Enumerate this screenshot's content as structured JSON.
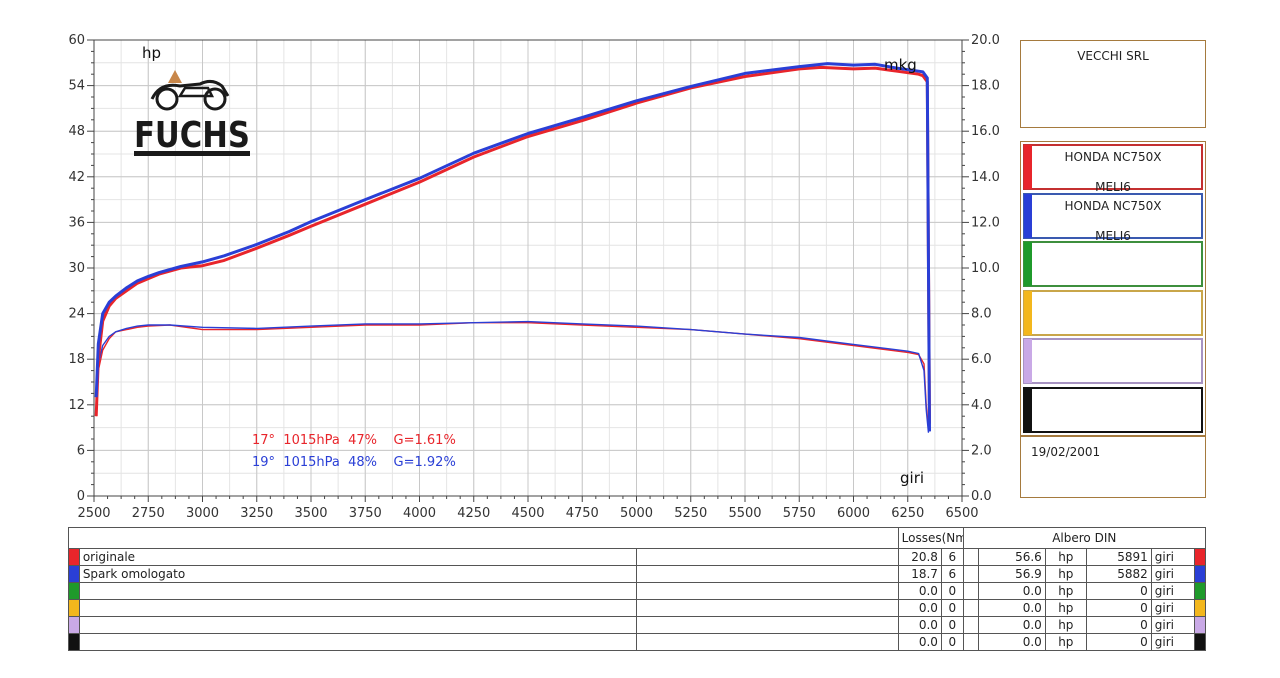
{
  "chart_data": {
    "type": "line",
    "x_axis": {
      "ticks": [
        2500,
        2750,
        3000,
        3250,
        3500,
        3750,
        4000,
        4250,
        4500,
        4750,
        5000,
        5250,
        5500,
        5750,
        6000,
        6250,
        6500
      ],
      "range": [
        2500,
        6500
      ],
      "label": "giri"
    },
    "y_left": {
      "ticks": [
        0,
        6,
        12,
        18,
        24,
        30,
        36,
        42,
        48,
        54,
        60
      ],
      "range": [
        0,
        60
      ],
      "label": "hp"
    },
    "y_right": {
      "ticks": [
        "0.0",
        "2.0",
        "4.0",
        "6.0",
        "8.0",
        "10.0",
        "12.0",
        "14.0",
        "16.0",
        "18.0",
        "20.0"
      ],
      "range": [
        0,
        20
      ],
      "label": "mkg"
    },
    "grid": true,
    "series": [
      {
        "name": "originale",
        "color": "#e8252b",
        "power_hp": {
          "x": [
            2510,
            2520,
            2540,
            2570,
            2600,
            2650,
            2700,
            2750,
            2800,
            2900,
            3000,
            3100,
            3250,
            3400,
            3500,
            3750,
            4000,
            4250,
            4500,
            4750,
            5000,
            5250,
            5500,
            5750,
            5850,
            6000,
            6100,
            6200,
            6300,
            6320,
            6340,
            6350
          ],
          "y": [
            10.5,
            18,
            23,
            25,
            26,
            27,
            28,
            28.6,
            29.2,
            30,
            30.3,
            31,
            32.6,
            34.3,
            35.5,
            38.4,
            41.3,
            44.6,
            47.3,
            49.4,
            51.7,
            53.7,
            55.2,
            56.2,
            56.4,
            56.2,
            56.3,
            55.9,
            55.5,
            55.3,
            54.5,
            9.5
          ]
        },
        "torque_mkg": {
          "x": [
            2510,
            2520,
            2540,
            2570,
            2600,
            2650,
            2700,
            2750,
            2850,
            3000,
            3250,
            3500,
            3750,
            4000,
            4250,
            4500,
            4750,
            5000,
            5250,
            5500,
            5750,
            6000,
            6250,
            6300,
            6325,
            6335,
            6345,
            6350
          ],
          "y": [
            3.5,
            5.5,
            6.4,
            6.9,
            7.2,
            7.3,
            7.4,
            7.45,
            7.5,
            7.3,
            7.3,
            7.4,
            7.5,
            7.5,
            7.6,
            7.6,
            7.5,
            7.4,
            7.3,
            7.1,
            6.9,
            6.6,
            6.3,
            6.2,
            5.8,
            4,
            3,
            3.3
          ]
        }
      },
      {
        "name": "Spark omologato",
        "color": "#2a3fd6",
        "power_hp": {
          "x": [
            2510,
            2520,
            2540,
            2570,
            2600,
            2650,
            2700,
            2750,
            2800,
            2900,
            3000,
            3100,
            3250,
            3400,
            3500,
            3750,
            4000,
            4250,
            4500,
            4750,
            5000,
            5250,
            5500,
            5750,
            5880,
            6000,
            6100,
            6200,
            6300,
            6320,
            6340,
            6350
          ],
          "y": [
            13,
            20,
            24,
            25.5,
            26.3,
            27.4,
            28.3,
            28.9,
            29.4,
            30.2,
            30.8,
            31.6,
            33.1,
            34.8,
            36.1,
            39,
            41.8,
            45.1,
            47.7,
            49.8,
            52,
            53.9,
            55.6,
            56.5,
            56.9,
            56.7,
            56.8,
            56.3,
            55.9,
            55.8,
            55,
            8.5
          ]
        },
        "torque_mkg": {
          "x": [
            2510,
            2520,
            2540,
            2570,
            2600,
            2650,
            2700,
            2750,
            2850,
            3000,
            3250,
            3500,
            3750,
            4000,
            4250,
            4500,
            4750,
            5000,
            5250,
            5500,
            5750,
            6000,
            6250,
            6300,
            6325,
            6335,
            6345,
            6350
          ],
          "y": [
            4,
            5.8,
            6.6,
            7,
            7.2,
            7.35,
            7.45,
            7.5,
            7.5,
            7.4,
            7.35,
            7.45,
            7.55,
            7.55,
            7.6,
            7.65,
            7.55,
            7.45,
            7.3,
            7.1,
            6.95,
            6.65,
            6.35,
            6.25,
            5.5,
            3.8,
            2.8,
            3.1
          ]
        }
      }
    ],
    "annotations": [
      {
        "text": "17°  1015hPa  47%    G=1.61%",
        "color": "#e8252b"
      },
      {
        "text": "19°  1015hPa  48%    G=1.92%",
        "color": "#2a3fd6"
      }
    ]
  },
  "logo": {
    "text": "FUCHS",
    "color": "#1a1a1a",
    "accent": "#c8874a"
  },
  "company": "VECCHI SRL",
  "legend": [
    {
      "line1": "HONDA NC750X",
      "line2": "MELI6",
      "color": "#e8252b",
      "border": "#c43030"
    },
    {
      "line1": "HONDA NC750X",
      "line2": "MELI6",
      "color": "#2a3fd6",
      "border": "#3a5ab0"
    },
    {
      "line1": "",
      "line2": "",
      "color": "#1f9a2b",
      "border": "#3d8f3d"
    },
    {
      "line1": "",
      "line2": "",
      "color": "#f3b71d",
      "border": "#c9a64a"
    },
    {
      "line1": "",
      "line2": "",
      "color": "#c9a9e6",
      "border": "#a793c2"
    },
    {
      "line1": "",
      "line2": "",
      "color": "#111111",
      "border": "#111111"
    }
  ],
  "date": "19/02/2001",
  "table": {
    "losses_header": "Losses(Nm)",
    "din_header": "Albero DIN",
    "rows": [
      {
        "color": "#e8252b",
        "name": "originale",
        "loss": "20.8",
        "n": "6",
        "hp": "56.6",
        "hp_unit": "hp",
        "rpm": "5891",
        "rpm_unit": "giri"
      },
      {
        "color": "#2a3fd6",
        "name": "Spark omologato",
        "loss": "18.7",
        "n": "6",
        "hp": "56.9",
        "hp_unit": "hp",
        "rpm": "5882",
        "rpm_unit": "giri"
      },
      {
        "color": "#1f9a2b",
        "name": "",
        "loss": "0.0",
        "n": "0",
        "hp": "0.0",
        "hp_unit": "hp",
        "rpm": "0",
        "rpm_unit": "giri"
      },
      {
        "color": "#f3b71d",
        "name": "",
        "loss": "0.0",
        "n": "0",
        "hp": "0.0",
        "hp_unit": "hp",
        "rpm": "0",
        "rpm_unit": "giri"
      },
      {
        "color": "#c9a9e6",
        "name": "",
        "loss": "0.0",
        "n": "0",
        "hp": "0.0",
        "hp_unit": "hp",
        "rpm": "0",
        "rpm_unit": "giri"
      },
      {
        "color": "#111111",
        "name": "",
        "loss": "0.0",
        "n": "0",
        "hp": "0.0",
        "hp_unit": "hp",
        "rpm": "0",
        "rpm_unit": "giri"
      }
    ]
  }
}
